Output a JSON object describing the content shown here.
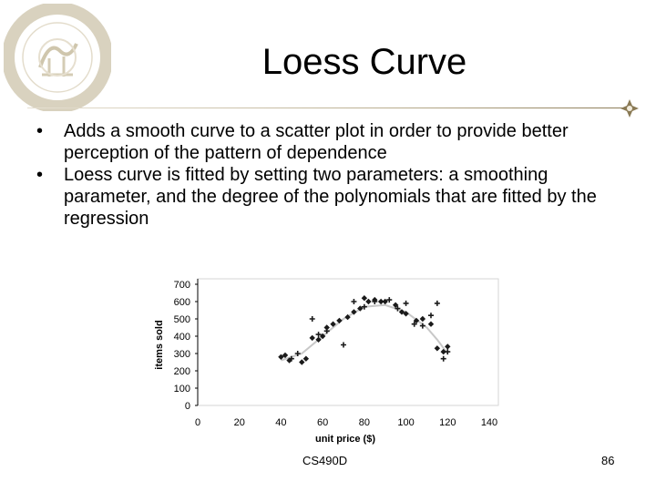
{
  "slide": {
    "title": "Loess Curve",
    "bullets": [
      "Adds a smooth curve to a scatter plot in order to provide better perception of the pattern of dependence",
      "Loess curve is fitted by setting two parameters: a smoothing parameter, and the degree of the polynomials that are fitted by the regression"
    ],
    "bullet_marker": "•",
    "footer_course": "CS490D",
    "footer_page": "86",
    "logo_icon": "university-seal-icon",
    "accent_color": "#b9ad8e"
  },
  "chart_data": {
    "type": "scatter",
    "xlabel": "unit price ($)",
    "ylabel": "items sold",
    "xlim": [
      0,
      140
    ],
    "ylim": [
      0,
      700
    ],
    "xticks": [
      "0",
      "20",
      "40",
      "60",
      "80",
      "100",
      "120",
      "140"
    ],
    "yticks": [
      "0",
      "100",
      "200",
      "300",
      "400",
      "500",
      "600",
      "700"
    ],
    "grid": false,
    "series": [
      {
        "marker": "diamond",
        "points": [
          [
            40,
            280
          ],
          [
            42,
            290
          ],
          [
            44,
            260
          ],
          [
            50,
            250
          ],
          [
            52,
            270
          ],
          [
            55,
            390
          ],
          [
            58,
            380
          ],
          [
            60,
            400
          ],
          [
            62,
            450
          ],
          [
            65,
            470
          ],
          [
            68,
            490
          ],
          [
            72,
            510
          ],
          [
            75,
            540
          ],
          [
            78,
            560
          ],
          [
            80,
            620
          ],
          [
            82,
            600
          ],
          [
            85,
            610
          ],
          [
            88,
            600
          ],
          [
            90,
            600
          ],
          [
            95,
            580
          ],
          [
            98,
            540
          ],
          [
            100,
            530
          ],
          [
            105,
            490
          ],
          [
            108,
            500
          ],
          [
            112,
            470
          ],
          [
            115,
            330
          ],
          [
            118,
            310
          ],
          [
            120,
            340
          ]
        ]
      },
      {
        "marker": "plus",
        "points": [
          [
            45,
            270
          ],
          [
            48,
            300
          ],
          [
            55,
            500
          ],
          [
            58,
            410
          ],
          [
            62,
            430
          ],
          [
            70,
            350
          ],
          [
            75,
            600
          ],
          [
            80,
            570
          ],
          [
            85,
            600
          ],
          [
            92,
            610
          ],
          [
            96,
            560
          ],
          [
            100,
            590
          ],
          [
            104,
            470
          ],
          [
            108,
            460
          ],
          [
            112,
            520
          ],
          [
            115,
            590
          ],
          [
            118,
            270
          ],
          [
            120,
            310
          ]
        ]
      }
    ],
    "loess_curve": [
      [
        40,
        260
      ],
      [
        50,
        300
      ],
      [
        60,
        400
      ],
      [
        70,
        500
      ],
      [
        80,
        570
      ],
      [
        90,
        580
      ],
      [
        100,
        540
      ],
      [
        110,
        450
      ],
      [
        115,
        380
      ],
      [
        120,
        300
      ]
    ],
    "colors": {
      "points": "#1a1a1a",
      "curve": "#c8c8c8",
      "axis": "#000000"
    }
  }
}
